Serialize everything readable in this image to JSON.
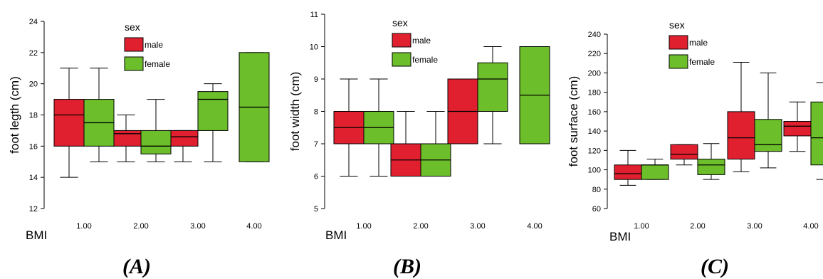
{
  "figure": {
    "panels_labels": [
      "(A)",
      "(B)",
      "(C)"
    ]
  },
  "colors": {
    "male": "#e0202f",
    "female": "#6cbe2a",
    "stroke": "#000000"
  },
  "chart_data": [
    {
      "type": "box",
      "panel_label": "(A)",
      "xlabel": "BMI",
      "ylabel": "foot legth (cm)",
      "categories": [
        "1.00",
        "2.00",
        "3.00",
        "4.00"
      ],
      "ylim": [
        12,
        24
      ],
      "yticks": [
        12,
        14,
        16,
        18,
        20,
        22,
        24
      ],
      "legend": {
        "title": "sex",
        "entries": [
          "male",
          "female"
        ]
      },
      "series": [
        {
          "name": "male",
          "boxes": [
            {
              "category": "1.00",
              "whisker_low": 14,
              "q1": 16,
              "median": 18,
              "q3": 19,
              "whisker_high": 21
            },
            {
              "category": "2.00",
              "whisker_low": 15,
              "q1": 16,
              "median": 16.8,
              "q3": 17,
              "whisker_high": 18
            },
            {
              "category": "3.00",
              "whisker_low": 15,
              "q1": 16,
              "median": 16.6,
              "q3": 17,
              "whisker_high": 17
            }
          ]
        },
        {
          "name": "female",
          "boxes": [
            {
              "category": "1.00",
              "whisker_low": 15,
              "q1": 16,
              "median": 17.5,
              "q3": 19,
              "whisker_high": 21
            },
            {
              "category": "2.00",
              "whisker_low": 15,
              "q1": 15.5,
              "median": 16,
              "q3": 17,
              "whisker_high": 19
            },
            {
              "category": "3.00",
              "whisker_low": 15,
              "q1": 17,
              "median": 19,
              "q3": 19.5,
              "whisker_high": 20
            },
            {
              "category": "4.00",
              "whisker_low": 15,
              "q1": 15,
              "median": 18.5,
              "q3": 22,
              "whisker_high": 22
            }
          ]
        }
      ]
    },
    {
      "type": "box",
      "panel_label": "(B)",
      "xlabel": "BMI",
      "ylabel": "foot width (cm)",
      "categories": [
        "1.00",
        "2.00",
        "3.00",
        "4.00"
      ],
      "ylim": [
        5,
        11
      ],
      "yticks": [
        5,
        6,
        7,
        8,
        9,
        10,
        11
      ],
      "legend": {
        "title": "sex",
        "entries": [
          "male",
          "female"
        ]
      },
      "series": [
        {
          "name": "male",
          "boxes": [
            {
              "category": "1.00",
              "whisker_low": 6,
              "q1": 7,
              "median": 7.5,
              "q3": 8,
              "whisker_high": 9
            },
            {
              "category": "2.00",
              "whisker_low": 6,
              "q1": 6,
              "median": 6.5,
              "q3": 7,
              "whisker_high": 8
            },
            {
              "category": "3.00",
              "whisker_low": 7,
              "q1": 7,
              "median": 8,
              "q3": 9,
              "whisker_high": 9
            }
          ]
        },
        {
          "name": "female",
          "boxes": [
            {
              "category": "1.00",
              "whisker_low": 6,
              "q1": 7,
              "median": 7.5,
              "q3": 8,
              "whisker_high": 9
            },
            {
              "category": "2.00",
              "whisker_low": 6,
              "q1": 6,
              "median": 6.5,
              "q3": 7,
              "whisker_high": 8
            },
            {
              "category": "3.00",
              "whisker_low": 7,
              "q1": 8,
              "median": 9,
              "q3": 9.5,
              "whisker_high": 10
            },
            {
              "category": "4.00",
              "whisker_low": 7,
              "q1": 7,
              "median": 8.5,
              "q3": 10,
              "whisker_high": 10
            }
          ]
        }
      ]
    },
    {
      "type": "box",
      "panel_label": "(C)",
      "xlabel": "BMI",
      "ylabel": "foot surface (cm)",
      "categories": [
        "1.00",
        "2.00",
        "3.00",
        "4.00"
      ],
      "ylim": [
        60,
        240
      ],
      "yticks": [
        60,
        80,
        100,
        120,
        140,
        160,
        180,
        200,
        220,
        240
      ],
      "legend": {
        "title": "sex",
        "entries": [
          "male",
          "female"
        ]
      },
      "series": [
        {
          "name": "male",
          "boxes": [
            {
              "category": "1.00",
              "whisker_low": 84,
              "q1": 90,
              "median": 96,
              "q3": 105,
              "whisker_high": 120
            },
            {
              "category": "2.00",
              "whisker_low": 105,
              "q1": 111,
              "median": 116,
              "q3": 126,
              "whisker_high": 126
            },
            {
              "category": "3.00",
              "whisker_low": 98,
              "q1": 111,
              "median": 133,
              "q3": 160,
              "whisker_high": 211
            },
            {
              "category": "4.00",
              "whisker_low": 119,
              "q1": 135,
              "median": 145,
              "q3": 150,
              "whisker_high": 170
            }
          ]
        },
        {
          "name": "female",
          "boxes": [
            {
              "category": "1.00",
              "whisker_low": 90,
              "q1": 90,
              "median": 105,
              "q3": 105,
              "whisker_high": 111
            },
            {
              "category": "2.00",
              "whisker_low": 90,
              "q1": 95,
              "median": 105,
              "q3": 111,
              "whisker_high": 127
            },
            {
              "category": "3.00",
              "whisker_low": 102,
              "q1": 119,
              "median": 126,
              "q3": 152,
              "whisker_high": 200
            },
            {
              "category": "4.00",
              "whisker_low": 90,
              "q1": 105,
              "median": 133,
              "q3": 170,
              "whisker_high": 190
            }
          ]
        }
      ]
    }
  ]
}
